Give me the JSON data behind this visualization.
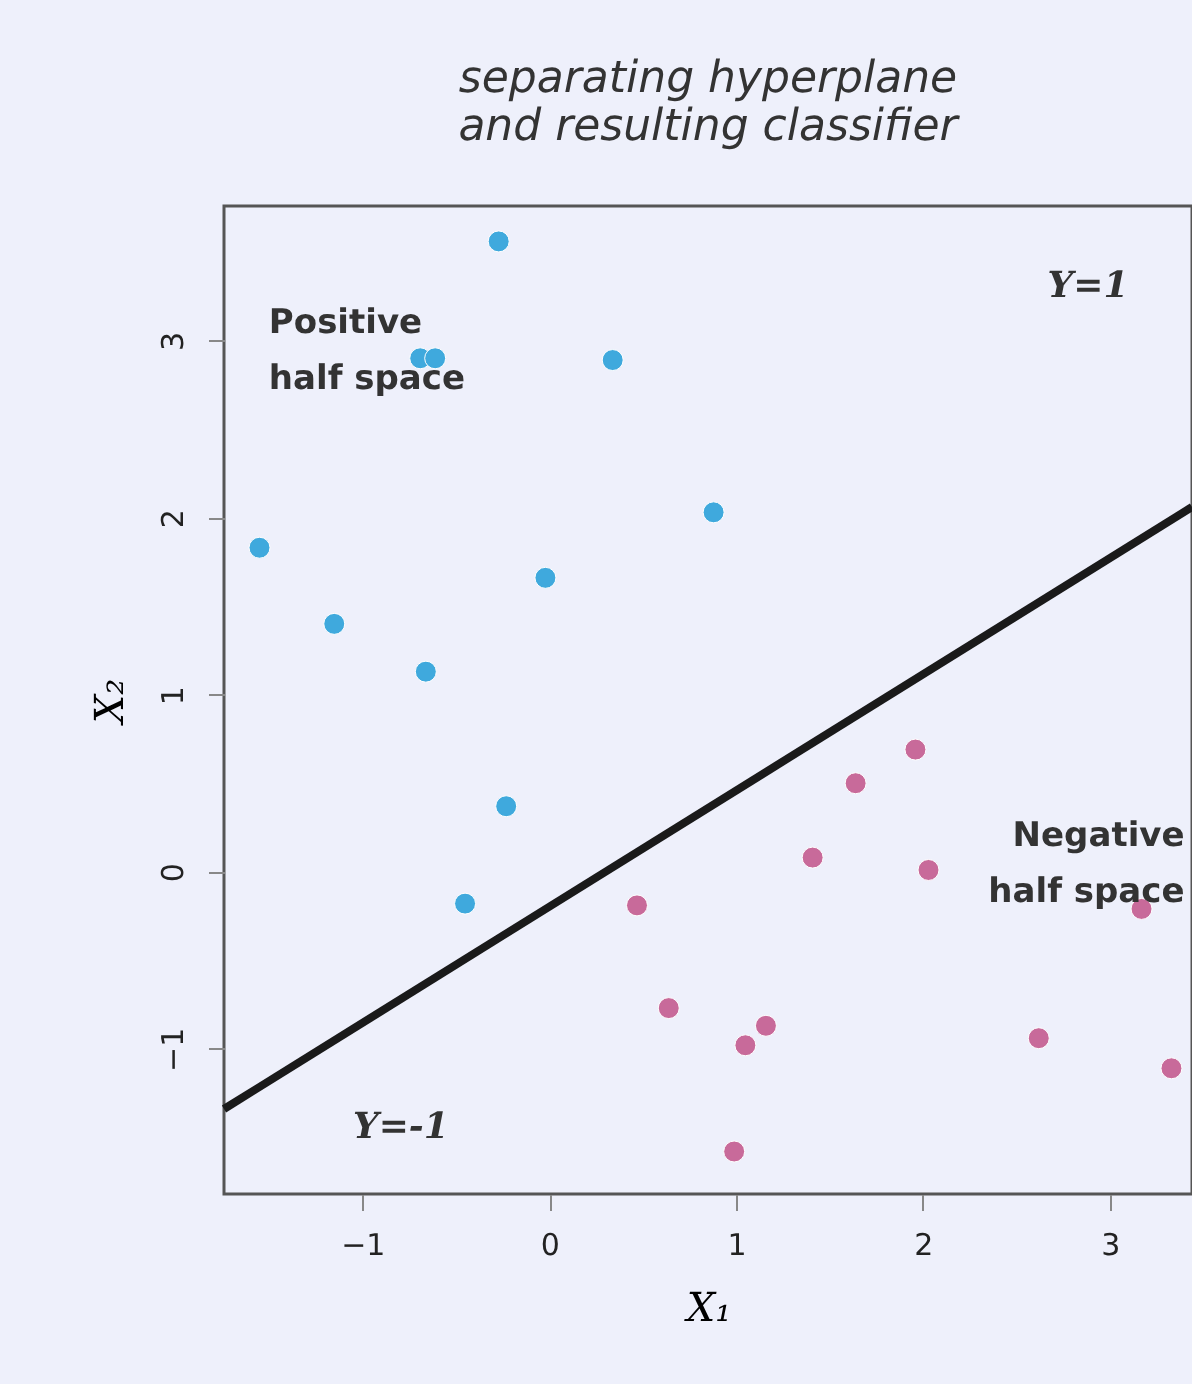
{
  "chart_data": {
    "type": "scatter",
    "title": [
      "separating hyperplane",
      "and resulting classifier"
    ],
    "xlabel": "X₁",
    "ylabel": "X₂",
    "xlim": [
      -1.74,
      3.44
    ],
    "ylim": [
      -1.82,
      3.76
    ],
    "xticks": [
      -1,
      0,
      1,
      2,
      3
    ],
    "yticks": [
      -1,
      0,
      1,
      2,
      3
    ],
    "grid": false,
    "marker": "circle",
    "series": [
      {
        "color": "#3fa9dd",
        "x": [
          -0.27,
          -0.69,
          -0.61,
          0.34,
          0.88,
          -1.55,
          -0.02,
          -1.15,
          -0.66,
          -0.23,
          -0.45
        ],
        "values": [
          3.56,
          2.9,
          2.9,
          2.89,
          2.03,
          1.83,
          1.66,
          1.4,
          1.13,
          0.37,
          -0.18
        ]
      },
      {
        "color": "#c86a9a",
        "x": [
          1.96,
          1.64,
          1.41,
          2.03,
          0.47,
          3.17,
          0.64,
          1.16,
          1.05,
          2.62,
          3.33,
          0.99
        ],
        "values": [
          0.69,
          0.5,
          0.08,
          0.01,
          -0.19,
          -0.21,
          -0.77,
          -0.87,
          -0.98,
          -0.94,
          -1.11,
          -1.58
        ]
      },
      {
        "type": "line",
        "marker": "none",
        "color": "#1a1a1a",
        "x": [
          -1.74,
          3.44
        ],
        "values": [
          -1.34,
          2.06
        ]
      }
    ],
    "annotations": [
      "Positive half space",
      "Negative half space",
      "Y=1",
      "Y=-1"
    ]
  }
}
